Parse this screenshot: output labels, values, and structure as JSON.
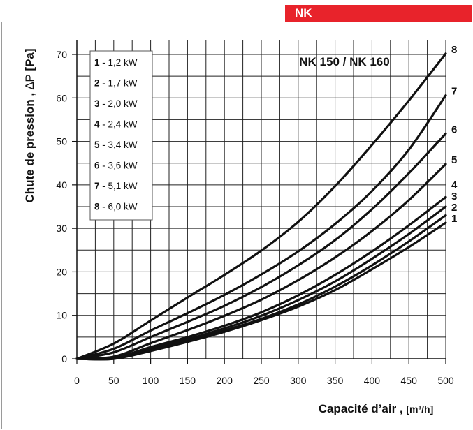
{
  "brand": {
    "label": "NK",
    "color": "#e8232b"
  },
  "chart_data": {
    "type": "line",
    "title": "NK 150 / NK 160",
    "xlabel": "Capacité d’air",
    "xunit": "[m³/h]",
    "ylabel_prefix": "Chute de pression ,",
    "ylabel_symbol": "∆P",
    "ylabel_unit": "[Pa]",
    "xlim": [
      0,
      500
    ],
    "ylim": [
      0,
      70
    ],
    "xticks": [
      0,
      50,
      100,
      150,
      200,
      250,
      300,
      350,
      400,
      450,
      500
    ],
    "yticks": [
      0,
      10,
      20,
      30,
      40,
      50,
      60,
      70
    ],
    "grid": true,
    "legend_position": "top-left",
    "x": [
      0,
      50,
      100,
      150,
      200,
      250,
      300,
      350,
      400,
      450,
      500
    ],
    "series": [
      {
        "name": "1",
        "legend_num": "1",
        "legend_text": " - 1,2 kW",
        "values": [
          0,
          0,
          1.8,
          3.9,
          6.2,
          8.9,
          12.0,
          15.8,
          20.6,
          25.7,
          31.3
        ]
      },
      {
        "name": "2",
        "legend_num": "2",
        "legend_text": " - 1,7 kW",
        "values": [
          0,
          0,
          2.0,
          4.1,
          6.5,
          9.2,
          12.5,
          16.6,
          21.5,
          27.0,
          33.0
        ]
      },
      {
        "name": "3",
        "legend_num": "3",
        "legend_text": " - 2,0 kW",
        "values": [
          0,
          0.2,
          2.4,
          4.5,
          7.0,
          9.9,
          13.5,
          17.8,
          23.0,
          28.7,
          35.0
        ]
      },
      {
        "name": "4",
        "legend_num": "4",
        "legend_text": " - 2,4 kW",
        "values": [
          0,
          0.2,
          2.7,
          5.0,
          7.6,
          10.7,
          14.6,
          19.3,
          24.7,
          30.7,
          37.2
        ]
      },
      {
        "name": "5",
        "legend_num": "5",
        "legend_text": " - 3,4 kW",
        "values": [
          0,
          0.5,
          3.6,
          6.6,
          9.9,
          13.6,
          18.1,
          23.3,
          29.4,
          36.5,
          44.8
        ]
      },
      {
        "name": "6",
        "legend_num": "6",
        "legend_text": " - 3,6 kW",
        "values": [
          0,
          1.5,
          5.0,
          8.5,
          12.2,
          16.5,
          21.5,
          27.3,
          34.4,
          42.7,
          51.8
        ]
      },
      {
        "name": "7",
        "legend_num": "7",
        "legend_text": " - 5,1 kW",
        "values": [
          0,
          2.3,
          6.5,
          10.5,
          14.7,
          19.4,
          24.7,
          31.0,
          38.6,
          48.1,
          60.6
        ]
      },
      {
        "name": "8",
        "legend_num": "8",
        "legend_text": " - 6,0 kW",
        "values": [
          0,
          3.5,
          8.8,
          14.1,
          19.3,
          24.9,
          31.5,
          39.7,
          49.2,
          59.4,
          70.2
        ]
      }
    ]
  }
}
